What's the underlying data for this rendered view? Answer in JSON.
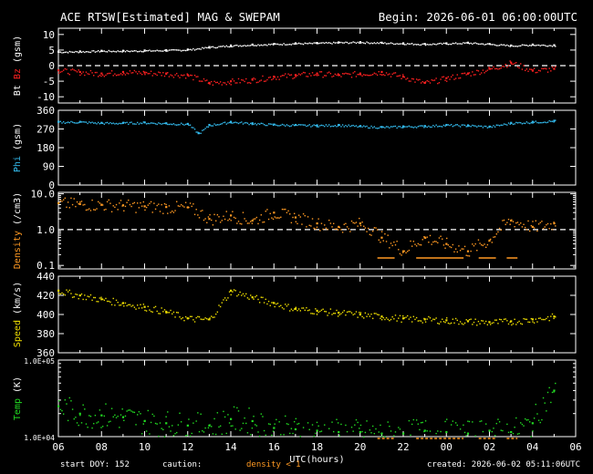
{
  "header": {
    "title": "ACE RTSW[Estimated] MAG & SWEPAM",
    "begin": "Begin: 2026-06-01 06:00:00UTC"
  },
  "footer": {
    "start_doy": "start DOY: 152",
    "caution_label": "caution:",
    "caution_density": "density < 1",
    "created": "created: 2026-06-02 05:11:06UTC"
  },
  "colors": {
    "background": "#000000",
    "axes": "#ffffff",
    "bt": "#ffffff",
    "bz": "#ff2020",
    "phi": "#33bbee",
    "density": "#ff9922",
    "speed": "#eedd00",
    "temp": "#22dd22"
  },
  "chart_data": [
    {
      "type": "line",
      "panel": "mag",
      "ylabel": [
        "Bt",
        "Bz",
        "(gsm)"
      ],
      "ylim": [
        -12,
        12
      ],
      "yticks": [
        10,
        5,
        0,
        -5,
        -10
      ],
      "reference_line": 0,
      "series": [
        {
          "name": "Bt",
          "x": [
            0,
            1,
            2,
            3,
            4,
            5,
            6,
            7,
            8,
            9,
            10,
            11,
            12,
            13,
            14,
            15,
            16,
            17,
            18,
            19,
            20,
            21,
            22,
            23
          ],
          "values": [
            4.5,
            4.6,
            4.8,
            4.8,
            4.9,
            5.0,
            5.2,
            6.0,
            6.5,
            6.8,
            7.0,
            7.2,
            7.3,
            7.5,
            7.6,
            7.4,
            7.2,
            7.0,
            7.2,
            7.4,
            7.0,
            6.5,
            6.8,
            6.6
          ]
        },
        {
          "name": "Bz",
          "x": [
            0,
            1,
            2,
            3,
            4,
            5,
            6,
            7,
            8,
            9,
            10,
            11,
            12,
            13,
            14,
            15,
            16,
            17,
            18,
            19,
            20,
            21,
            22,
            23
          ],
          "values": [
            -1.5,
            -2.0,
            -2.5,
            -2.0,
            -2.2,
            -2.5,
            -3.0,
            -5.5,
            -5.0,
            -4.5,
            -3.5,
            -3.0,
            -2.5,
            -3.0,
            -2.5,
            -2.0,
            -3.5,
            -5.5,
            -4.0,
            -2.5,
            -1.0,
            1.0,
            -1.5,
            -1.0
          ]
        }
      ]
    },
    {
      "type": "line",
      "panel": "phi",
      "ylabel": [
        "Phi",
        "(gsm)"
      ],
      "ylim": [
        0,
        360
      ],
      "yticks": [
        360,
        270,
        180,
        90,
        0
      ],
      "series": [
        {
          "name": "Phi",
          "x": [
            0,
            1,
            2,
            3,
            4,
            5,
            6,
            6.5,
            7,
            8,
            9,
            10,
            11,
            12,
            13,
            14,
            15,
            16,
            17,
            18,
            19,
            20,
            21,
            22,
            23
          ],
          "values": [
            305,
            305,
            300,
            300,
            302,
            298,
            295,
            250,
            290,
            305,
            298,
            292,
            290,
            288,
            290,
            284,
            280,
            283,
            285,
            290,
            288,
            282,
            300,
            305,
            310
          ]
        }
      ]
    },
    {
      "type": "scatter",
      "panel": "density",
      "ylabel": [
        "Density",
        "(/cm3)"
      ],
      "yscale": "log",
      "ylim": [
        0.08,
        11
      ],
      "yticks": [
        10.0,
        1.0,
        0.1
      ],
      "reference_line": 1.0,
      "series": [
        {
          "name": "Density",
          "x": [
            0,
            1,
            2,
            3,
            4,
            5,
            6,
            7,
            8,
            9,
            10,
            11,
            12,
            13,
            14,
            15,
            16,
            17,
            18,
            19,
            20,
            21,
            22,
            23
          ],
          "values": [
            5.5,
            5.2,
            5.0,
            4.8,
            4.5,
            4.3,
            4.2,
            2.0,
            2.5,
            1.8,
            3.0,
            2.2,
            1.5,
            1.2,
            1.5,
            0.6,
            0.25,
            0.6,
            0.4,
            0.25,
            0.5,
            1.8,
            1.2,
            1.5
          ]
        }
      ]
    },
    {
      "type": "scatter",
      "panel": "speed",
      "ylabel": [
        "Speed",
        "(km/s)"
      ],
      "ylim": [
        360,
        440
      ],
      "yticks": [
        440,
        420,
        400,
        380,
        360
      ],
      "series": [
        {
          "name": "Speed",
          "x": [
            0,
            1,
            2,
            3,
            4,
            5,
            6,
            7,
            8,
            9,
            10,
            11,
            12,
            13,
            14,
            15,
            16,
            17,
            18,
            19,
            20,
            21,
            22,
            23
          ],
          "values": [
            425,
            420,
            416,
            412,
            408,
            403,
            396,
            395,
            425,
            418,
            412,
            406,
            404,
            402,
            400,
            398,
            396,
            395,
            394,
            393,
            392,
            393,
            395,
            398
          ]
        }
      ]
    },
    {
      "type": "scatter",
      "panel": "temp",
      "ylabel": [
        "Temp",
        "(K)"
      ],
      "yscale": "log",
      "ylim": [
        10000,
        100000
      ],
      "yticks": [
        "1.0E+05",
        "1.0E+04"
      ],
      "series": [
        {
          "name": "Temp",
          "x": [
            0,
            1,
            2,
            3,
            4,
            5,
            6,
            7,
            8,
            9,
            10,
            11,
            12,
            13,
            14,
            15,
            16,
            17,
            18,
            19,
            20,
            21,
            22,
            23
          ],
          "values": [
            25000,
            20000,
            19000,
            18000,
            16000,
            15000,
            14000,
            14000,
            17000,
            16000,
            13000,
            12500,
            12000,
            11500,
            11500,
            11000,
            11000,
            12000,
            11500,
            11000,
            12000,
            11500,
            15000,
            40000
          ]
        }
      ]
    }
  ],
  "x_axis": {
    "range_hours": [
      0,
      24
    ],
    "tick_labels": [
      "06",
      "08",
      "10",
      "12",
      "14",
      "16",
      "18",
      "20",
      "22",
      "00",
      "02",
      "04",
      "06"
    ],
    "xlabel": "UTC(hours)"
  },
  "caution_markers": [
    {
      "x_start": 14.8,
      "x_end": 15.6
    },
    {
      "x_start": 16.6,
      "x_end": 18.8
    },
    {
      "x_start": 19.5,
      "x_end": 20.3
    },
    {
      "x_start": 20.8,
      "x_end": 21.3
    }
  ]
}
